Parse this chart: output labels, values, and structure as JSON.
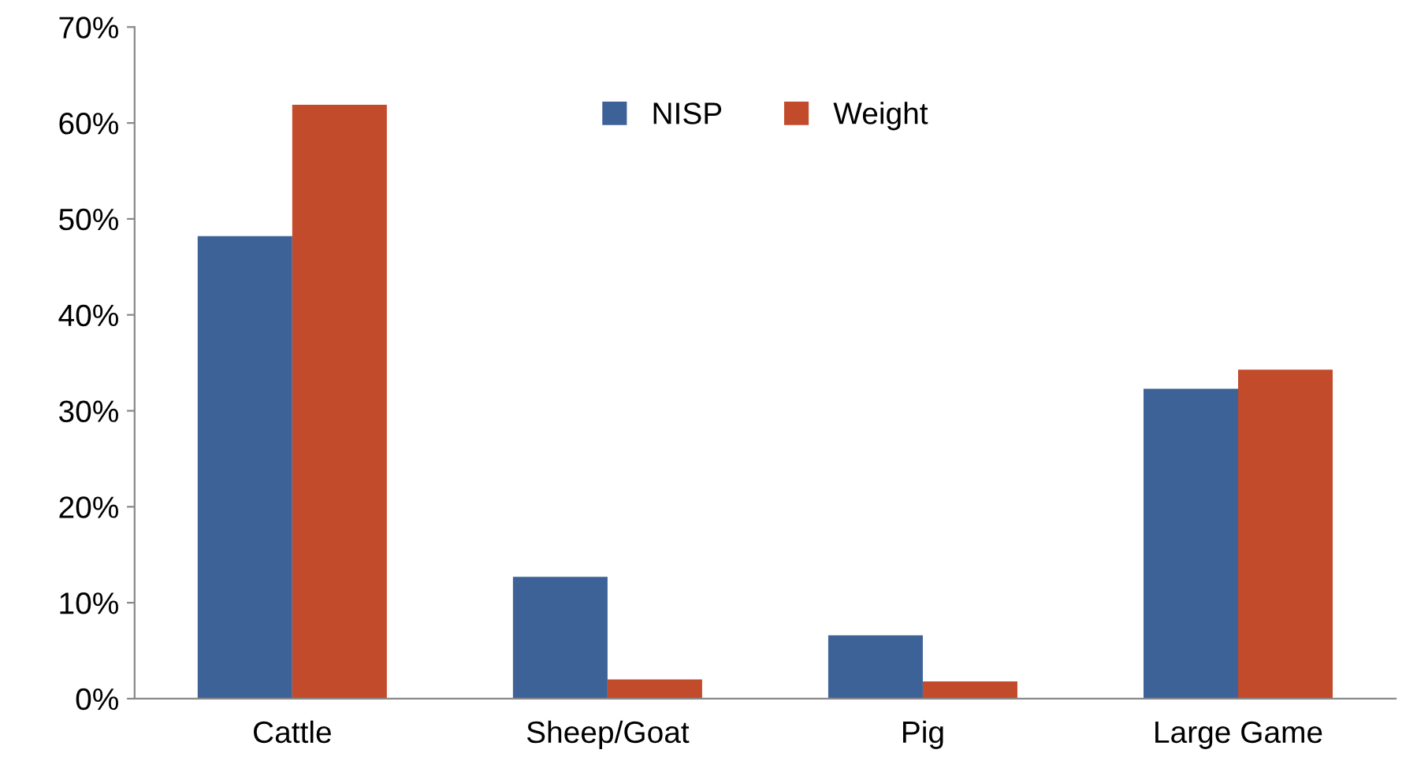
{
  "chart_data": {
    "type": "bar",
    "categories": [
      "Cattle",
      "Sheep/Goat",
      "Pig",
      "Large Game"
    ],
    "series": [
      {
        "name": "NISP",
        "color": "#3c6298",
        "values": [
          48.2,
          12.7,
          6.6,
          32.3
        ]
      },
      {
        "name": "Weight",
        "color": "#c24b2c",
        "values": [
          61.9,
          2.0,
          1.8,
          34.3
        ]
      }
    ],
    "ylim": [
      0,
      70
    ],
    "yticks": [
      {
        "value": 0,
        "label": "0%"
      },
      {
        "value": 10,
        "label": "10%"
      },
      {
        "value": 20,
        "label": "20%"
      },
      {
        "value": 30,
        "label": "30%"
      },
      {
        "value": 40,
        "label": "40%"
      },
      {
        "value": 50,
        "label": "50%"
      },
      {
        "value": 60,
        "label": "60%"
      },
      {
        "value": 70,
        "label": "70%"
      }
    ],
    "grid": false,
    "legend": "top"
  }
}
